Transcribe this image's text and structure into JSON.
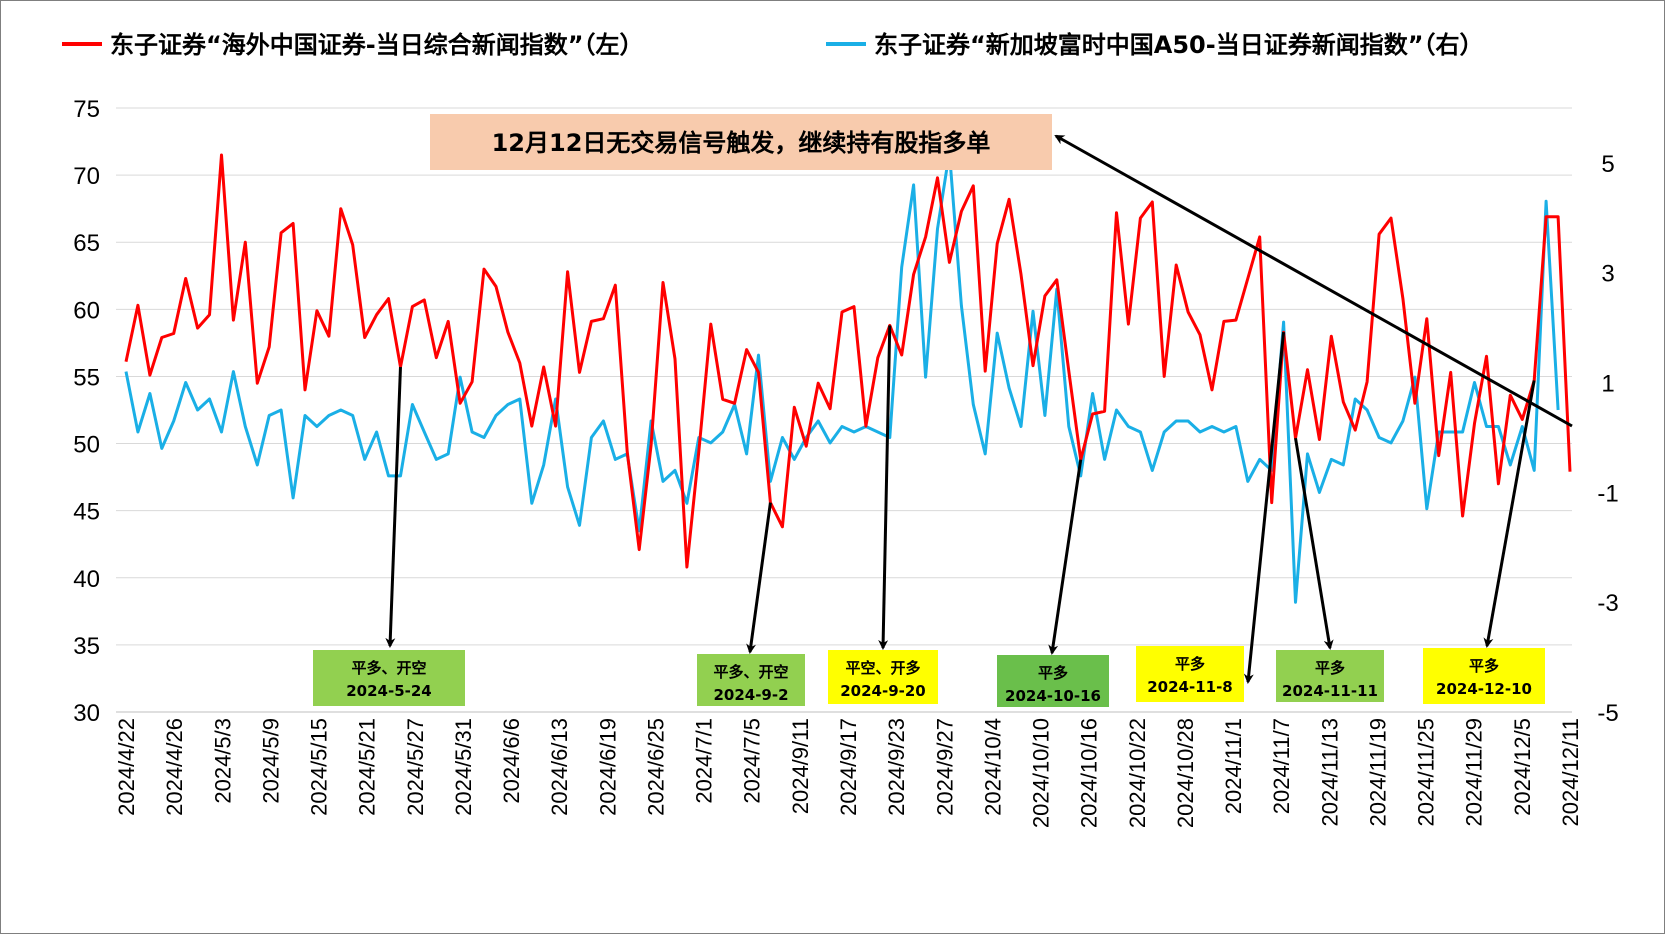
{
  "colors": {
    "red_series": "#ff0000",
    "blue_series": "#1aafe6",
    "grid": "#d9d9d9",
    "callout_bg": "#f8cbad",
    "box_green_light": "#92d050",
    "box_green_dark": "#6abf4b",
    "box_yellow": "#ffff00"
  },
  "legend": [
    {
      "name": "东子证券“海外中国证券-当日综合新闻指数”（左）",
      "color": "#ff0000"
    },
    {
      "name": "东子证券“新加坡富时中国A50-当日证券新闻指数”（右）",
      "color": "#1aafe6"
    }
  ],
  "callout": {
    "text": "12月12日无交易信号触发，继续持有股指多单"
  },
  "annotations": [
    {
      "line1": "平多、开空",
      "line2": "2024-5-24",
      "bg": "#92d050",
      "arrow_from_index": 23
    },
    {
      "line1": "平多、开空",
      "line2": "2024-9-2",
      "bg": "#92d050",
      "arrow_from_index": 54
    },
    {
      "line1": "平空、开多",
      "line2": "2024-9-20",
      "bg": "#ffff00",
      "arrow_from_index": 64
    },
    {
      "line1": "平多",
      "line2": "2024-10-16",
      "bg": "#6abf4b",
      "arrow_from_index": 80
    },
    {
      "line1": "平多",
      "line2": "2024-11-8",
      "bg": "#ffff00",
      "arrow_from_index": 97
    },
    {
      "line1": "平多",
      "line2": "2024-11-11",
      "bg": "#92d050",
      "arrow_from_index": 98
    },
    {
      "line1": "平多",
      "line2": "2024-12-10",
      "bg": "#ffff00",
      "arrow_from_index": 118
    }
  ],
  "chart_data": {
    "type": "line",
    "title": "",
    "xlabel": "",
    "ylabel": "",
    "ylim_left": [
      30,
      75
    ],
    "ylim_right": [
      -5,
      6
    ],
    "yticks_left": [
      "30",
      "35",
      "40",
      "45",
      "50",
      "55",
      "60",
      "65",
      "70",
      "75"
    ],
    "yticks_right": [
      "-5",
      "-3",
      "-1",
      "1",
      "3",
      "5"
    ],
    "grid": true,
    "legend_position": "top",
    "x_tick_labels": [
      "2024/4/22",
      "2024/4/26",
      "2024/5/3",
      "2024/5/9",
      "2024/5/15",
      "2024/5/21",
      "2024/5/27",
      "2024/5/31",
      "2024/6/6",
      "2024/6/13",
      "2024/6/19",
      "2024/6/25",
      "2024/7/1",
      "2024/7/5",
      "2024/9/11",
      "2024/9/17",
      "2024/9/23",
      "2024/9/27",
      "2024/10/4",
      "2024/10/10",
      "2024/10/16",
      "2024/10/22",
      "2024/10/28",
      "2024/11/1",
      "2024/11/7",
      "2024/11/13",
      "2024/11/19",
      "2024/11/25",
      "2024/11/29",
      "2024/12/5",
      "2024/12/11"
    ],
    "series": [
      {
        "name": "东子证券“海外中国证券-当日综合新闻指数”（左）",
        "axis": "left",
        "values": [
          56.1,
          60.3,
          55.1,
          57.9,
          58.2,
          62.3,
          58.6,
          59.6,
          71.5,
          59.2,
          65.0,
          54.5,
          57.2,
          65.7,
          66.4,
          54.0,
          59.9,
          58.0,
          67.5,
          64.8,
          57.9,
          59.6,
          60.8,
          55.7,
          60.2,
          60.7,
          56.4,
          59.1,
          53.0,
          54.6,
          63.0,
          61.7,
          58.3,
          56.0,
          51.3,
          55.7,
          51.3,
          62.8,
          55.3,
          59.1,
          59.3,
          61.8,
          49.4,
          42.1,
          49.9,
          62.0,
          56.3,
          40.8,
          49.4,
          58.9,
          53.3,
          53.0,
          57.0,
          55.3,
          45.6,
          43.8,
          52.7,
          49.8,
          54.5,
          52.6,
          59.8,
          60.2,
          51.3,
          56.4,
          58.8,
          56.6,
          62.6,
          65.4,
          69.8,
          63.5,
          67.3,
          69.2,
          55.4,
          64.9,
          68.2,
          62.6,
          55.8,
          61.0,
          62.2,
          55.4,
          48.8,
          52.2,
          52.4,
          67.2,
          58.9,
          66.8,
          68.0,
          55.0,
          63.3,
          59.8,
          58.1,
          54.0,
          59.1,
          59.2,
          62.3,
          65.4,
          45.6,
          58.3,
          50.4,
          55.5,
          50.3,
          58.0,
          53.1,
          51.0,
          54.6,
          65.6,
          66.8,
          60.8,
          53.0,
          59.3,
          49.1,
          55.3,
          44.6,
          51.5,
          56.5,
          47.0,
          53.6,
          51.8,
          54.7,
          66.9,
          66.9,
          47.9
        ]
      },
      {
        "name": "东子证券“新加坡富时中国A50-当日证券新闻指数”（右）",
        "axis": "right",
        "values": [
          1.2,
          0.1,
          0.8,
          -0.2,
          0.3,
          1.0,
          0.5,
          0.7,
          0.1,
          1.2,
          0.2,
          -0.5,
          0.4,
          0.5,
          -1.1,
          0.4,
          0.2,
          0.4,
          0.5,
          0.4,
          -0.4,
          0.1,
          -0.7,
          -0.7,
          0.6,
          0.1,
          -0.4,
          -0.3,
          1.1,
          0.1,
          0.0,
          0.4,
          0.6,
          0.7,
          -1.2,
          -0.5,
          0.7,
          -0.9,
          -1.6,
          0.0,
          0.3,
          -0.4,
          -0.3,
          -1.7,
          0.3,
          -0.8,
          -0.6,
          -1.2,
          0.0,
          -0.1,
          0.1,
          0.6,
          -0.3,
          1.5,
          -0.8,
          0.0,
          -0.4,
          0.0,
          0.3,
          -0.1,
          0.2,
          0.1,
          0.2,
          0.1,
          0.0,
          3.1,
          4.6,
          1.1,
          3.8,
          5.2,
          2.4,
          0.6,
          -0.3,
          1.9,
          0.9,
          0.2,
          2.3,
          0.4,
          2.7,
          0.2,
          -0.7,
          0.8,
          -0.4,
          0.5,
          0.2,
          0.1,
          -0.6,
          0.1,
          0.3,
          0.3,
          0.1,
          0.2,
          0.1,
          0.2,
          -0.8,
          -0.4,
          -0.6,
          2.1,
          -3.0,
          -0.3,
          -1.0,
          -0.4,
          -0.5,
          0.7,
          0.5,
          0.0,
          -0.1,
          0.3,
          1.1,
          -1.3,
          0.1,
          0.1,
          0.1,
          1.0,
          0.2,
          0.2,
          -0.5,
          0.2,
          -0.6,
          4.3,
          0.5
        ]
      }
    ]
  }
}
